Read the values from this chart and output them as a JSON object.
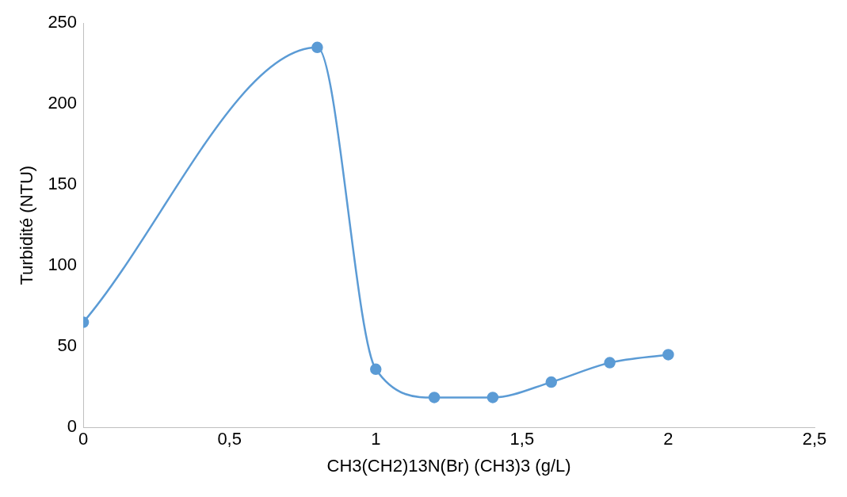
{
  "chart_data": {
    "type": "line",
    "xlabel": "CH3(CH2)13N(Br) (CH3)3 (g/L)",
    "ylabel": "Turbidité (NTU)",
    "x": [
      0,
      0.8,
      1,
      1.2,
      1.4,
      1.6,
      1.8,
      2
    ],
    "series": [
      {
        "color": "#5b9bd5",
        "values": [
          65,
          235,
          36,
          18.5,
          18.5,
          28,
          40,
          45
        ]
      }
    ],
    "xlim": [
      0,
      2.5
    ],
    "xticks": [
      0,
      {
        "value": 0.5,
        "label": "0,5"
      },
      1,
      {
        "value": 1.5,
        "label": "1,5"
      },
      2,
      {
        "value": 2.5,
        "label": "2,5"
      }
    ],
    "ylim": [
      0,
      250
    ],
    "yticks": [
      0,
      50,
      100,
      150,
      200,
      250
    ],
    "grid": false,
    "legend": false,
    "marker": "circle",
    "line_style": "solid"
  }
}
